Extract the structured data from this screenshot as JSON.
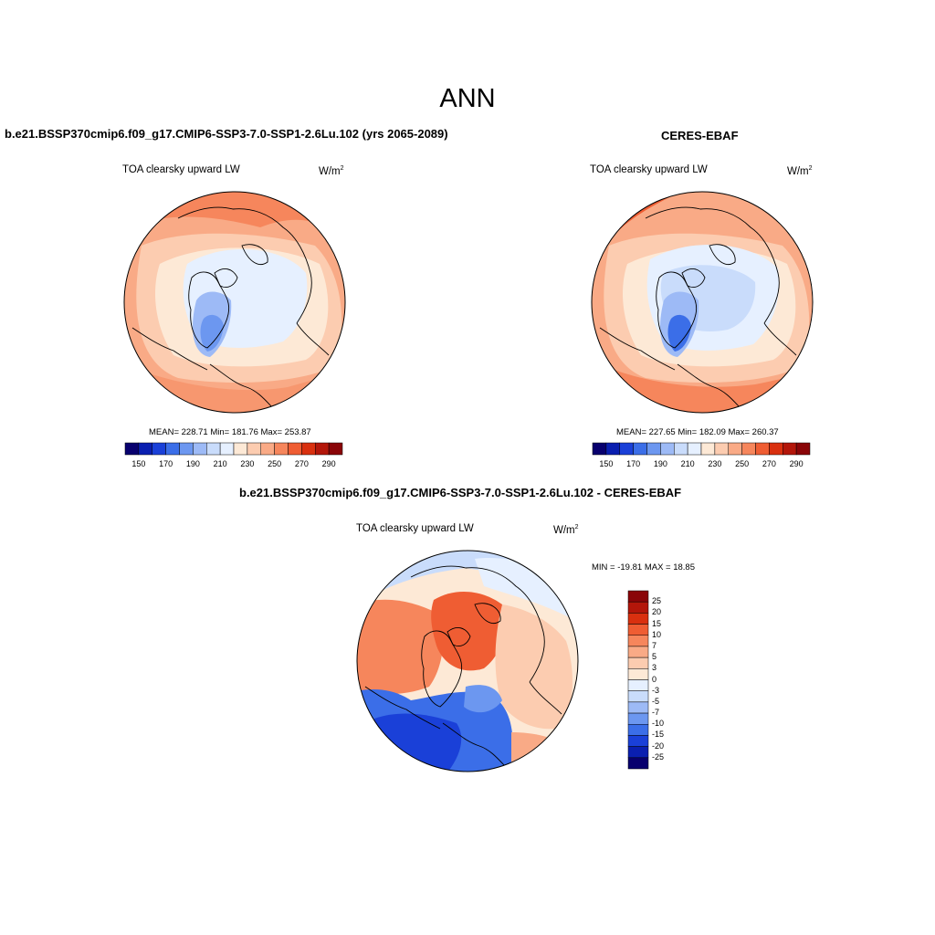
{
  "title": "ANN",
  "panels": {
    "model": {
      "title": "b.e21.BSSP370cmip6.f09_g17.CMIP6-SSP3-7.0-SSP1-2.6Lu.102 (yrs 2065-2089)",
      "variable": "TOA clearsky upward LW",
      "units_base": "W/m",
      "units_exp": "2",
      "stats": "MEAN= 228.71  Min= 181.76  Max= 253.87"
    },
    "obs": {
      "title": "CERES-EBAF",
      "variable": "TOA clearsky upward LW",
      "units_base": "W/m",
      "units_exp": "2",
      "stats": "MEAN= 227.65  Min= 182.09  Max= 260.37"
    },
    "diff": {
      "title": "b.e21.BSSP370cmip6.f09_g17.CMIP6-SSP3-7.0-SSP1-2.6Lu.102 - CERES-EBAF",
      "variable": "TOA clearsky upward LW",
      "units_base": "W/m",
      "units_exp": "2",
      "stats": "MIN = -19.81 MAX =  18.85"
    }
  },
  "colorbar_main": {
    "colors": [
      "#08006e",
      "#0a1fb0",
      "#1a40d8",
      "#3b6ee8",
      "#6c97f0",
      "#9dbaf6",
      "#c9dcfb",
      "#e6f0ff",
      "#fde9d6",
      "#fcccb0",
      "#f9aa86",
      "#f6865c",
      "#ef5d33",
      "#d9300f",
      "#b3160a",
      "#8a0508"
    ],
    "tick_labels": [
      "150",
      "170",
      "190",
      "210",
      "230",
      "250",
      "270",
      "290"
    ]
  },
  "colorbar_diff": {
    "colors": [
      "#8a0508",
      "#b3160a",
      "#d9300f",
      "#ef5d33",
      "#f6865c",
      "#f9aa86",
      "#fcccb0",
      "#fde9d6",
      "#e6f0ff",
      "#c9dcfb",
      "#9dbaf6",
      "#6c97f0",
      "#3b6ee8",
      "#1a40d8",
      "#0a1fb0",
      "#08006e"
    ],
    "tick_labels": [
      "25",
      "20",
      "15",
      "10",
      "7",
      "5",
      "3",
      "0",
      "-3",
      "-5",
      "-7",
      "-10",
      "-15",
      "-20",
      "-25"
    ]
  }
}
